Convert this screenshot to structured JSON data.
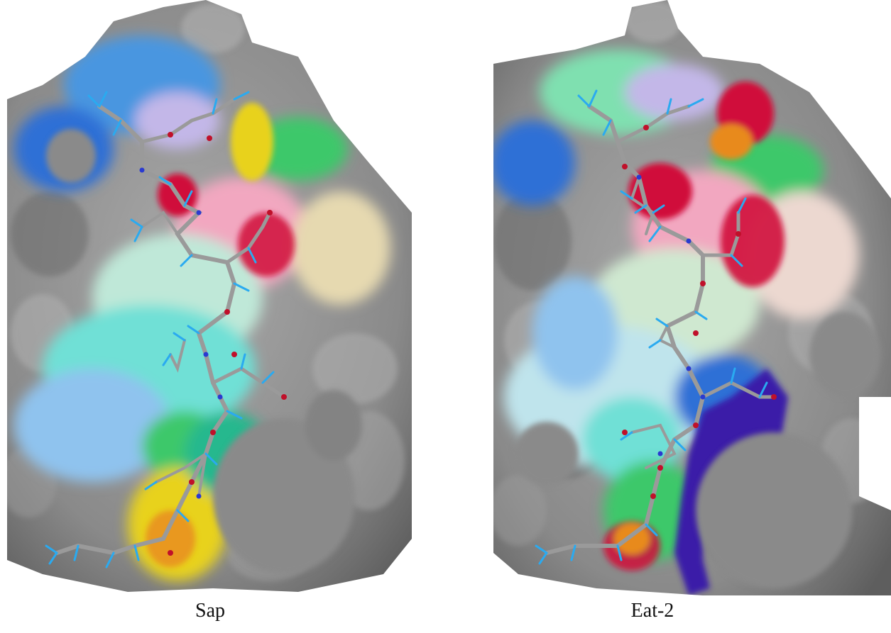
{
  "figure": {
    "panels": [
      {
        "caption": "Sap"
      },
      {
        "caption": "Eat-2"
      }
    ],
    "colors": {
      "background": "#ffffff",
      "surface_gray": "#8a8a8a",
      "surface_shadow": "#5e5e5e",
      "blue": "#2f6fd6",
      "light_blue": "#8fc3ee",
      "cyan": "#6fe0d6",
      "green": "#3ec86a",
      "yellow": "#e8d21a",
      "orange": "#e88a1e",
      "red": "#d0103a",
      "pink": "#f2a7c0",
      "purple": "#3a1aa8",
      "stick_gray": "#9a9a9a",
      "stick_blue": "#2aaaf0",
      "stick_red": "#c0102a"
    }
  }
}
